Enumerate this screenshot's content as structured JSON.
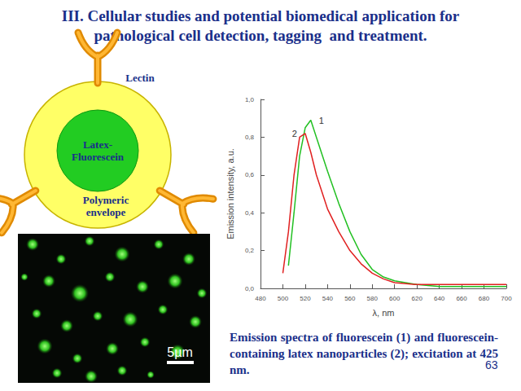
{
  "slide": {
    "title_lines": [
      "III. Cellular studies and potential biomedical application for",
      "pathological cell detection, tagging  and treatment."
    ],
    "diagram": {
      "lectin": "Lectin",
      "core_lines": [
        "Latex-",
        "Fluorescein"
      ],
      "envelope_lines": [
        "Polymeric",
        "envelope"
      ]
    },
    "micrograph": {
      "scale_bar": "5µm"
    },
    "caption": "Emission spectra of fluorescein (1) and fluorescein-containing latex nanoparticles (2); excitation at 425 nm.",
    "page_number": "63"
  },
  "chart_data": {
    "type": "line",
    "x_label": "λ, nm",
    "y_label": "Emission intensity, a.u.",
    "x": [
      490,
      500,
      505,
      510,
      515,
      520,
      525,
      530,
      540,
      550,
      560,
      570,
      580,
      590,
      600,
      620,
      640,
      660,
      680,
      700
    ],
    "series": [
      {
        "name": "1",
        "color": "#22c022",
        "line_style": "solid",
        "values": [
          null,
          null,
          0.12,
          0.4,
          0.7,
          0.85,
          0.89,
          0.8,
          0.62,
          0.45,
          0.3,
          0.18,
          0.1,
          0.06,
          0.04,
          0.02,
          0.01,
          0.01,
          0.01,
          0.01
        ]
      },
      {
        "name": "2",
        "color": "#e02020",
        "line_style": "solid",
        "values": [
          null,
          0.08,
          0.3,
          0.6,
          0.8,
          0.82,
          0.72,
          0.6,
          0.42,
          0.3,
          0.2,
          0.13,
          0.08,
          0.05,
          0.03,
          0.02,
          0.02,
          0.02,
          0.02,
          0.02
        ]
      }
    ],
    "xlim": [
      480,
      700
    ],
    "xticks": [
      480,
      500,
      520,
      540,
      560,
      580,
      600,
      620,
      640,
      660,
      680,
      700
    ],
    "ylim": [
      0,
      1.0
    ],
    "yticks": [
      {
        "value": 0,
        "label": "0,0"
      },
      {
        "value": 0.2,
        "label": "0,2"
      },
      {
        "value": 0.4,
        "label": "0,4"
      },
      {
        "value": 0.6,
        "label": "0,6"
      },
      {
        "value": 0.8,
        "label": "0,8"
      },
      {
        "value": 1.0,
        "label": "1,0"
      }
    ],
    "grid": false
  }
}
